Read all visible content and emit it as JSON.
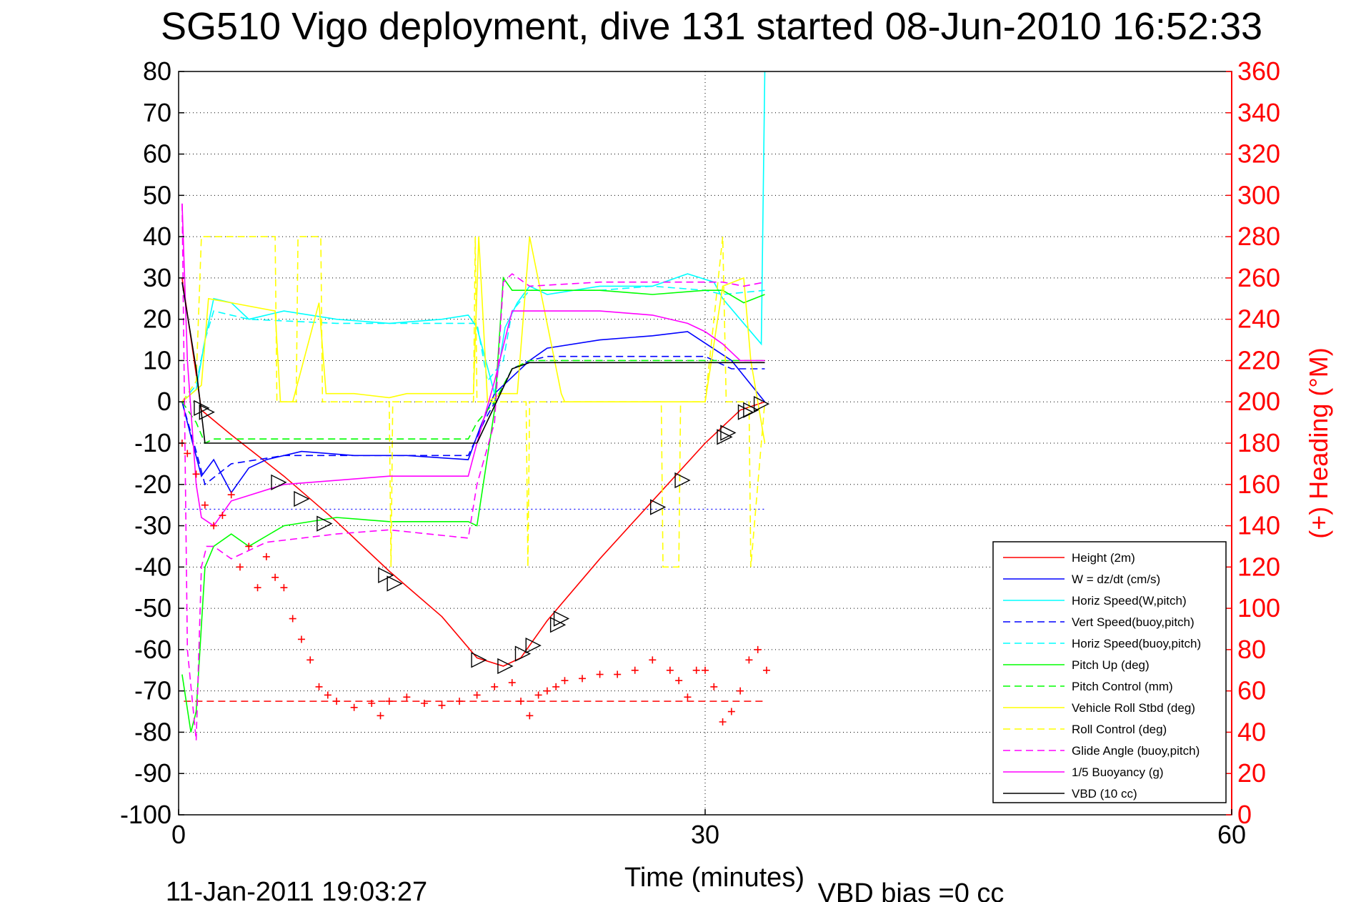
{
  "chart_data": {
    "type": "line",
    "title": "SG510 Vigo deployment, dive 131 started 08-Jun-2010 16:52:33",
    "xlabel": "Time (minutes)",
    "ylabel_right": "(+) Heading (°M)",
    "footer_date": "11-Jan-2011 19:03:27",
    "footer_bias": "VBD bias =0 cc",
    "xlim": [
      0,
      60
    ],
    "ylim_left": [
      -100,
      80
    ],
    "ylim_right": [
      0,
      360
    ],
    "x_ticks": [
      0,
      30,
      60
    ],
    "y_ticks_left": [
      80,
      70,
      60,
      50,
      40,
      30,
      20,
      10,
      0,
      -10,
      -20,
      -30,
      -40,
      -50,
      -60,
      -70,
      -80,
      -90,
      -100
    ],
    "y_ticks_right": [
      360,
      340,
      320,
      300,
      280,
      260,
      240,
      220,
      200,
      180,
      160,
      140,
      120,
      100,
      80,
      60,
      40,
      20,
      0
    ],
    "grid": true,
    "legend_position": "bottom-right",
    "series": [
      {
        "name": "Height (2m)",
        "color": "#ff0000",
        "style": "solid",
        "x": [
          0.2,
          1.3,
          3,
          6,
          9,
          12,
          15,
          17,
          18.5,
          19.5,
          21,
          24,
          27,
          30,
          32,
          33.4
        ],
        "y": [
          30,
          -2,
          -8,
          -18,
          -29,
          -41,
          -52,
          -62,
          -64,
          -62,
          -53,
          -38,
          -24,
          -10,
          -2,
          0
        ]
      },
      {
        "name": "W = dz/dt (cm/s)",
        "color": "#0000ff",
        "style": "solid",
        "x": [
          0.2,
          0.8,
          1.3,
          2,
          3,
          4,
          5,
          7,
          10,
          13,
          16.5,
          17.2,
          18,
          19,
          20,
          21,
          24,
          27,
          29,
          31.5,
          33.4
        ],
        "y": [
          0,
          -10,
          -18,
          -14,
          -22,
          -16,
          -14,
          -12,
          -13,
          -13,
          -14,
          -6,
          2,
          6,
          10,
          13,
          15,
          16,
          17,
          10,
          0
        ]
      },
      {
        "name": "Horiz Speed(W,pitch)",
        "color": "#00ffff",
        "style": "solid",
        "x": [
          0.2,
          1,
          1.5,
          2,
          3,
          4,
          6,
          9,
          12,
          15,
          16.5,
          17,
          18,
          18.6,
          19.3,
          20,
          21,
          24,
          27,
          29,
          30.5,
          31,
          32,
          33.2,
          33.4
        ],
        "y": [
          0,
          3,
          15,
          25,
          24,
          20,
          22,
          20,
          19,
          20,
          21,
          18,
          2,
          18,
          24,
          28,
          26,
          28,
          28,
          31,
          29,
          25,
          20,
          14,
          80
        ]
      },
      {
        "name": "Vert Speed(buoy,pitch)",
        "color": "#0000ff",
        "style": "dashed",
        "x": [
          0.2,
          1,
          1.5,
          3,
          6,
          9,
          12,
          16.5,
          17.5,
          18.3,
          19,
          20,
          21,
          24,
          27,
          30,
          31.5,
          33.4
        ],
        "y": [
          0,
          -12,
          -20,
          -15,
          -13,
          -13,
          -13,
          -13,
          -4,
          2,
          8,
          10,
          11,
          11,
          11,
          11,
          8,
          8
        ]
      },
      {
        "name": "Horiz Speed(buoy,pitch)",
        "color": "#00ffff",
        "style": "dashed",
        "x": [
          0.2,
          1,
          1.5,
          2,
          4,
          9,
          12,
          16.5,
          17,
          17.6,
          18.5,
          19,
          20,
          24,
          27,
          30,
          31,
          33.4
        ],
        "y": [
          0,
          4,
          15,
          22,
          20,
          19,
          19,
          19,
          19,
          5,
          10,
          22,
          27,
          27,
          28,
          27,
          26,
          27
        ]
      },
      {
        "name": "Pitch Up (deg)",
        "color": "#00ff00",
        "style": "solid",
        "x": [
          0.2,
          0.7,
          1,
          1.5,
          2,
          3,
          4,
          6,
          9,
          12,
          16.5,
          17,
          18,
          18.5,
          19,
          21,
          24,
          27,
          30,
          31,
          32.2,
          33.4
        ],
        "y": [
          -66,
          -80,
          -75,
          -40,
          -35,
          -32,
          -35,
          -30,
          -28,
          -29,
          -29,
          -30,
          -2,
          30,
          27,
          27,
          27,
          26,
          27,
          27,
          24,
          26
        ]
      },
      {
        "name": "Pitch Control (mm)",
        "color": "#00ff00",
        "style": "dashed",
        "x": [
          0.2,
          1,
          1.5,
          2,
          3,
          6,
          16.5,
          17,
          18,
          19,
          20,
          30,
          33.4
        ],
        "y": [
          0,
          -5,
          -10,
          -9,
          -9,
          -9,
          -9,
          -5,
          0,
          8,
          10,
          10,
          10
        ]
      },
      {
        "name": "Vehicle Roll Stbd (deg)",
        "color": "#ffff00",
        "style": "solid",
        "x": [
          0.2,
          1.3,
          1.7,
          3,
          5.5,
          5.8,
          6.5,
          8,
          8.4,
          10,
          12,
          13,
          14.5,
          16.8,
          17.1,
          17.6,
          18.4,
          19.3,
          20,
          21.8,
          22,
          27,
          30,
          31,
          32.2,
          32.6,
          33.4
        ],
        "y": [
          0,
          4,
          25,
          24,
          22,
          0,
          0,
          24,
          2,
          2,
          1,
          2,
          2,
          2,
          40,
          0,
          2,
          2,
          40,
          2,
          0,
          0,
          0,
          28,
          30,
          10,
          -10
        ]
      },
      {
        "name": "Roll Control (deg)",
        "color": "#ffff00",
        "style": "dashed",
        "x": [
          0.2,
          1,
          1.3,
          1.6,
          5.5,
          5.6,
          6.7,
          6.8,
          8.1,
          8.2,
          9.5,
          12,
          12.1,
          12.2,
          13,
          14.5,
          16.8,
          16.9,
          17,
          18,
          19.8,
          19.9,
          20,
          21.5,
          27.5,
          27.6,
          28.5,
          28.6,
          30,
          31,
          31.2,
          32.5,
          32.6,
          33.4
        ],
        "y": [
          0,
          5,
          40,
          40,
          40,
          0,
          0,
          40,
          40,
          0,
          0,
          0,
          -40,
          0,
          0,
          0,
          0,
          40,
          0,
          0,
          0,
          -40,
          0,
          0,
          0,
          -40,
          -40,
          0,
          0,
          40,
          0,
          0,
          -40,
          0
        ]
      },
      {
        "name": "Glide Angle (buoy,pitch)",
        "color": "#ff00ff",
        "style": "dashed",
        "x": [
          0.2,
          0.5,
          1,
          1.3,
          1.6,
          2,
          3,
          5,
          9,
          12,
          16.5,
          17,
          18,
          18.5,
          19,
          20,
          24,
          30,
          31,
          32.2,
          33.4
        ],
        "y": [
          48,
          -60,
          -82,
          -40,
          -35,
          -35,
          -38,
          -34,
          -32,
          -31,
          -33,
          -20,
          -5,
          29,
          31,
          28,
          29,
          29,
          29,
          28,
          29
        ]
      },
      {
        "name": "1/5 Buoyancy (g)",
        "color": "#ff00ff",
        "style": "solid",
        "x": [
          0.2,
          0.5,
          1,
          1.3,
          2,
          3,
          6,
          12,
          16.5,
          17,
          18,
          19,
          24,
          27,
          29,
          30,
          31,
          32,
          33.4
        ],
        "y": [
          48,
          10,
          -20,
          -28,
          -30,
          -24,
          -20,
          -18,
          -18,
          -10,
          5,
          22,
          22,
          21,
          19,
          17,
          14,
          10,
          10
        ]
      },
      {
        "name": "VBD (10 cc)",
        "color": "#000000",
        "style": "solid",
        "x": [
          0.2,
          1,
          1.5,
          16.5,
          17,
          19,
          20,
          30,
          33.4
        ],
        "y": [
          29,
          8,
          -10,
          -10,
          -10,
          8,
          9.5,
          9.5,
          9.5
        ]
      }
    ],
    "heading_series": {
      "axis": "right",
      "color": "#ff0000",
      "marker": "+",
      "x": [
        0.2,
        0.5,
        1,
        1.5,
        2,
        2.5,
        3,
        3.5,
        4,
        4.5,
        5,
        5.5,
        6,
        6.5,
        7,
        7.5,
        8,
        8.5,
        9,
        10,
        11,
        11.5,
        12,
        13,
        14,
        15,
        16,
        17,
        18,
        19,
        19.5,
        20,
        20.5,
        21,
        21.5,
        22,
        23,
        24,
        25,
        26,
        27,
        28,
        28.5,
        29,
        29.5,
        30,
        30.5,
        31,
        31.5,
        32,
        32.5,
        33,
        33.5
      ],
      "y": [
        180,
        175,
        165,
        150,
        140,
        145,
        155,
        120,
        130,
        110,
        125,
        115,
        110,
        95,
        85,
        75,
        62,
        58,
        55,
        52,
        54,
        48,
        55,
        57,
        54,
        53,
        55,
        58,
        62,
        64,
        55,
        48,
        58,
        60,
        62,
        65,
        66,
        68,
        68,
        70,
        75,
        70,
        65,
        57,
        70,
        70,
        62,
        45,
        50,
        60,
        75,
        80,
        70
      ]
    },
    "heading_reference": {
      "value": 55,
      "color": "#ff0000",
      "style": "dashed"
    },
    "w_reference": {
      "value": -26,
      "color": "#0000ff",
      "style": "dotted"
    },
    "triangle_markers": {
      "color": "#000000",
      "x": [
        1.3,
        1.6,
        5.7,
        7,
        8.3,
        11.8,
        12.3,
        17.1,
        18.6,
        19.6,
        20.2,
        21.6,
        21.8,
        27.3,
        28.7,
        31.1,
        31.3,
        32.3,
        32.6,
        33.2
      ],
      "y": [
        -1.5,
        -2.5,
        -19.5,
        -23.5,
        -29.5,
        -42,
        -44,
        -62.5,
        -64,
        -61,
        -59,
        -54,
        -52.5,
        -25.5,
        -19,
        -8.5,
        -7.5,
        -2.5,
        -2,
        -0.5
      ]
    }
  }
}
